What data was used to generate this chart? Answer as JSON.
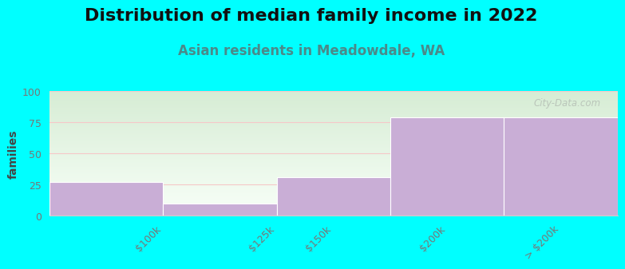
{
  "title": "Distribution of median family income in 2022",
  "subtitle": "Asian residents in Meadowdale, WA",
  "categories": [
    "$100k",
    "$125k",
    "$150k",
    "$200k",
    "> $200k"
  ],
  "values": [
    27,
    10,
    31,
    79,
    79
  ],
  "bar_color": "#c9aed6",
  "background_color": "#00ffff",
  "grad_top_color": "#d6ecd4",
  "grad_bottom_color": "#f8fff8",
  "ylabel": "families",
  "ylim": [
    0,
    100
  ],
  "yticks": [
    0,
    25,
    50,
    75,
    100
  ],
  "grid_color": "#f5c8c8",
  "watermark": "City-Data.com",
  "title_fontsize": 16,
  "subtitle_fontsize": 12,
  "subtitle_color": "#4a8a8a",
  "tick_color": "#777777"
}
